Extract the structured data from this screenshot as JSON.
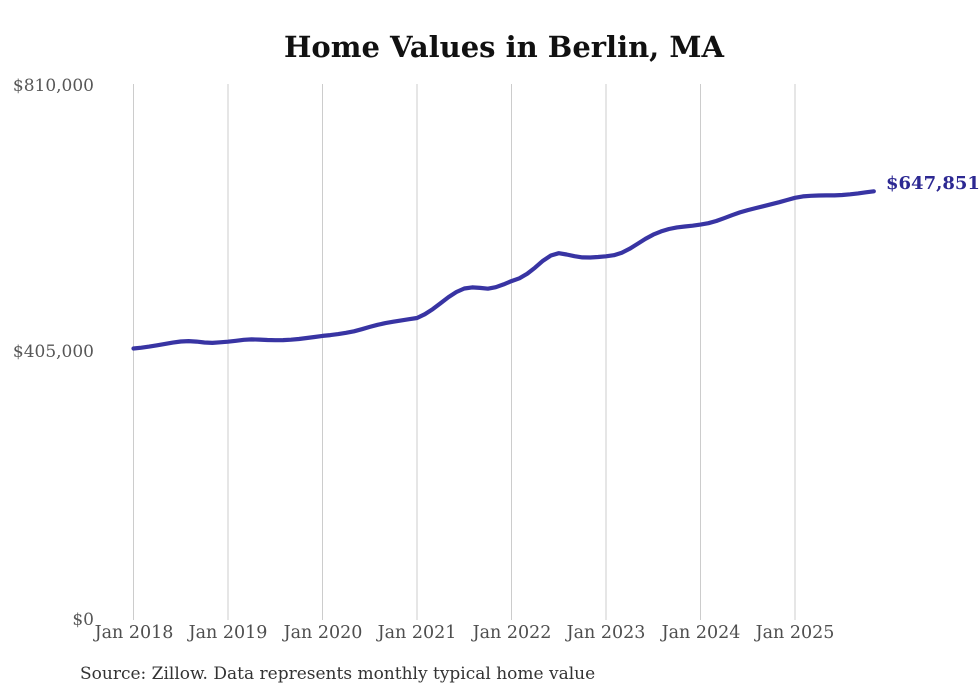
{
  "chart_data": {
    "type": "line",
    "title": "Home Values in Berlin, MA",
    "series_name": "Monthly typical home value",
    "frequency": "monthly",
    "start_month": "2018-01",
    "end_month": "2025-11",
    "values_by_year": {
      "2018": [
        410300,
        411500,
        413200,
        415200,
        417300,
        419200,
        420800,
        421500,
        420700,
        419300,
        418800,
        419600
      ],
      "2019": [
        420600,
        422000,
        423400,
        424100,
        423800,
        423200,
        422800,
        423000,
        423600,
        424600,
        426100,
        427700
      ],
      "2020": [
        429300,
        430600,
        432100,
        434000,
        436300,
        439400,
        443000,
        446100,
        448700,
        450800,
        452700,
        454500
      ],
      "2021": [
        456400,
        462100,
        469800,
        478800,
        487900,
        495600,
        500900,
        502600,
        501800,
        500600,
        502900,
        507200
      ],
      "2022": [
        512200,
        516400,
        523300,
        532600,
        542900,
        550900,
        554300,
        552400,
        549700,
        548000,
        547800,
        548600
      ],
      "2023": [
        549600,
        551300,
        555000,
        560900,
        568300,
        575900,
        582400,
        587300,
        590900,
        593300,
        594600,
        595800
      ],
      "2024": [
        597500,
        599600,
        602900,
        607200,
        611800,
        615900,
        619400,
        622400,
        625300,
        628300,
        631400,
        634700
      ],
      "2025": [
        638000,
        640100,
        641100,
        641500,
        641600,
        641700,
        642200,
        643300,
        644700,
        646300,
        647851
      ]
    },
    "final_value": 647851,
    "end_label": "$647,851",
    "ylim": [
      0,
      810000
    ],
    "y_ticks": [
      0,
      405000,
      810000
    ],
    "y_tick_labels": [
      "$0",
      "$405,000",
      "$810,000"
    ],
    "x_tick_labels": [
      "Jan 2018",
      "Jan 2019",
      "Jan 2020",
      "Jan 2021",
      "Jan 2022",
      "Jan 2023",
      "Jan 2024",
      "Jan 2025"
    ],
    "x_tick_month_indices": [
      0,
      12,
      24,
      36,
      48,
      60,
      72,
      84
    ],
    "grid": "vertical-only",
    "legend": "none",
    "line_color": "#3834a3",
    "grid_color": "#cccccc",
    "label_color": "#2c2892"
  },
  "footer": {
    "source": "Source: Zillow. Data represents monthly typical home value"
  }
}
